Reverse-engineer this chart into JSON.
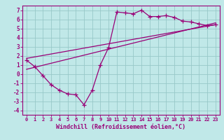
{
  "bg_color": "#c0e8e8",
  "line_color": "#990077",
  "grid_color": "#98c8c8",
  "xlabel": "Windchill (Refroidissement éolien,°C)",
  "xlabel_fontsize": 6.0,
  "xtick_fontsize": 5.0,
  "ytick_fontsize": 5.5,
  "ylim": [
    -4.5,
    7.5
  ],
  "xlim": [
    -0.5,
    23.5
  ],
  "curve1_x": [
    0,
    1,
    2,
    3,
    4,
    5,
    6,
    7,
    8,
    9,
    10,
    11,
    12,
    13,
    14,
    15,
    16,
    17,
    18,
    19,
    20,
    21,
    22,
    23
  ],
  "curve1_y": [
    1.5,
    0.8,
    -0.2,
    -1.2,
    -1.8,
    -2.2,
    -2.3,
    -3.4,
    -1.8,
    1.0,
    2.9,
    6.8,
    6.7,
    6.6,
    7.0,
    6.3,
    6.3,
    6.4,
    6.2,
    5.8,
    5.7,
    5.5,
    5.3,
    5.4
  ],
  "line2_x": [
    0,
    23
  ],
  "line2_y": [
    1.7,
    5.4
  ],
  "line3_x": [
    0,
    23
  ],
  "line3_y": [
    0.5,
    5.6
  ],
  "marker": "+",
  "markersize": 4,
  "linewidth": 0.9
}
